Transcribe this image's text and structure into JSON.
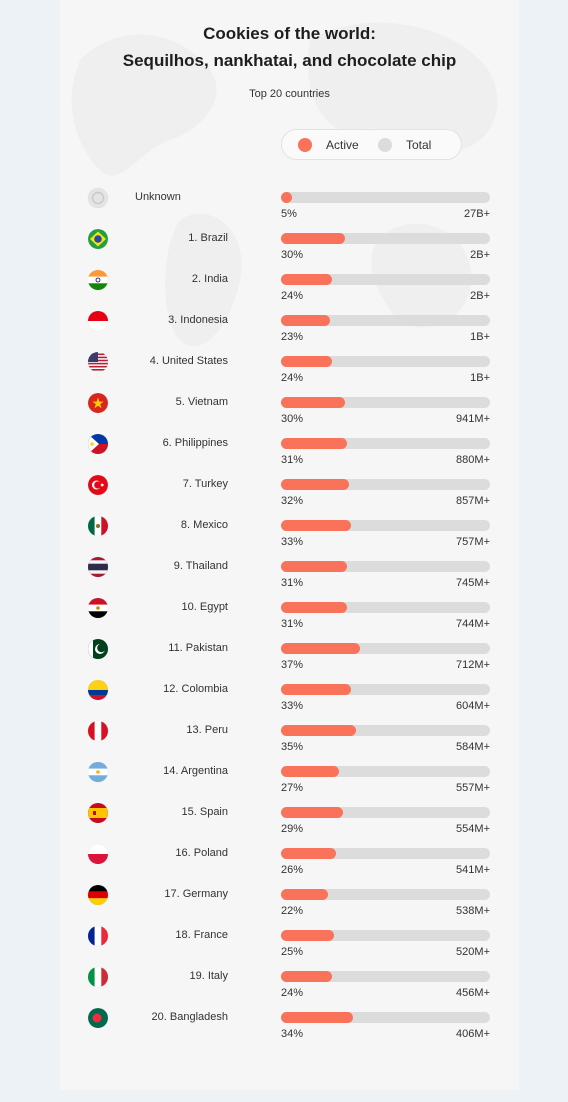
{
  "title_line1": "Cookies of the world:",
  "title_line2": "Sequilhos, nankhatai, and chocolate chip",
  "subtitle": "Top 20 countries",
  "legend": {
    "active": "Active",
    "total": "Total"
  },
  "colors": {
    "active": "#f9735b",
    "total": "#dcdcdc",
    "card": "#f6f6f6",
    "page": "#edf2f7"
  },
  "chart_data": {
    "type": "bar",
    "orientation": "horizontal",
    "title": "Cookies of the world: Sequilhos, nankhatai, and chocolate chip",
    "subtitle": "Top 20 countries",
    "legend": [
      "Active",
      "Total"
    ],
    "legend_position": "top-right",
    "xlim": [
      0,
      100
    ],
    "rows": [
      {
        "label": "Unknown",
        "flag": "unknown",
        "active_pct": 5,
        "active_label": "5%",
        "total_label": "27B+"
      },
      {
        "label": "1. Brazil",
        "flag": "brazil",
        "active_pct": 30,
        "active_label": "30%",
        "total_label": "2B+"
      },
      {
        "label": "2. India",
        "flag": "india",
        "active_pct": 24,
        "active_label": "24%",
        "total_label": "2B+"
      },
      {
        "label": "3. Indonesia",
        "flag": "indonesia",
        "active_pct": 23,
        "active_label": "23%",
        "total_label": "1B+"
      },
      {
        "label": "4. United States",
        "flag": "usa",
        "active_pct": 24,
        "active_label": "24%",
        "total_label": "1B+"
      },
      {
        "label": "5. Vietnam",
        "flag": "vietnam",
        "active_pct": 30,
        "active_label": "30%",
        "total_label": "941M+"
      },
      {
        "label": "6. Philippines",
        "flag": "philippines",
        "active_pct": 31,
        "active_label": "31%",
        "total_label": "880M+"
      },
      {
        "label": "7. Turkey",
        "flag": "turkey",
        "active_pct": 32,
        "active_label": "32%",
        "total_label": "857M+"
      },
      {
        "label": "8. Mexico",
        "flag": "mexico",
        "active_pct": 33,
        "active_label": "33%",
        "total_label": "757M+"
      },
      {
        "label": "9. Thailand",
        "flag": "thailand",
        "active_pct": 31,
        "active_label": "31%",
        "total_label": "745M+"
      },
      {
        "label": "10. Egypt",
        "flag": "egypt",
        "active_pct": 31,
        "active_label": "31%",
        "total_label": "744M+"
      },
      {
        "label": "11. Pakistan",
        "flag": "pakistan",
        "active_pct": 37,
        "active_label": "37%",
        "total_label": "712M+"
      },
      {
        "label": "12. Colombia",
        "flag": "colombia",
        "active_pct": 33,
        "active_label": "33%",
        "total_label": "604M+"
      },
      {
        "label": "13. Peru",
        "flag": "peru",
        "active_pct": 35,
        "active_label": "35%",
        "total_label": "584M+"
      },
      {
        "label": "14. Argentina",
        "flag": "argentina",
        "active_pct": 27,
        "active_label": "27%",
        "total_label": "557M+"
      },
      {
        "label": "15. Spain",
        "flag": "spain",
        "active_pct": 29,
        "active_label": "29%",
        "total_label": "554M+"
      },
      {
        "label": "16. Poland",
        "flag": "poland",
        "active_pct": 26,
        "active_label": "26%",
        "total_label": "541M+"
      },
      {
        "label": "17. Germany",
        "flag": "germany",
        "active_pct": 22,
        "active_label": "22%",
        "total_label": "538M+"
      },
      {
        "label": "18. France",
        "flag": "france",
        "active_pct": 25,
        "active_label": "25%",
        "total_label": "520M+"
      },
      {
        "label": "19. Italy",
        "flag": "italy",
        "active_pct": 24,
        "active_label": "24%",
        "total_label": "456M+"
      },
      {
        "label": "20. Bangladesh",
        "flag": "bangladesh",
        "active_pct": 34,
        "active_label": "34%",
        "total_label": "406M+"
      }
    ]
  }
}
